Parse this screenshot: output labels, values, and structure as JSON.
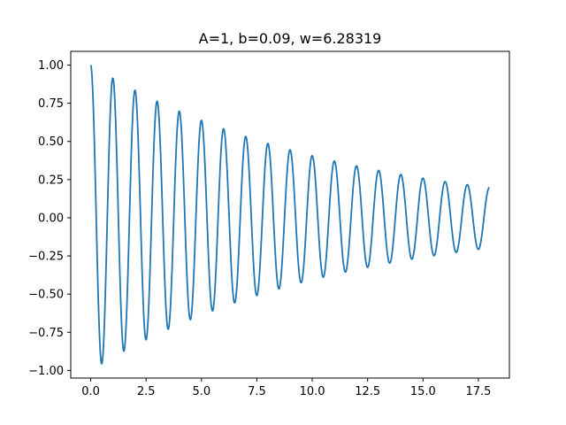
{
  "chart_data": {
    "type": "line",
    "title": "A=1, b=0.09, w=6.28319",
    "xlabel": "",
    "ylabel": "",
    "xlim": [
      -0.9,
      18.9
    ],
    "ylim": [
      -1.05,
      1.09
    ],
    "x_ticks": [
      0.0,
      2.5,
      5.0,
      7.5,
      10.0,
      12.5,
      15.0,
      17.5
    ],
    "x_tick_labels": [
      "0.0",
      "2.5",
      "5.0",
      "7.5",
      "10.0",
      "12.5",
      "15.0",
      "17.5"
    ],
    "y_ticks": [
      -1.0,
      -0.75,
      -0.5,
      -0.25,
      0.0,
      0.25,
      0.5,
      0.75,
      1.0
    ],
    "y_tick_labels": [
      "−1.00",
      "−0.75",
      "−0.50",
      "−0.25",
      "0.00",
      "0.25",
      "0.50",
      "0.75",
      "1.00"
    ],
    "grid": false,
    "legend": false,
    "series": [
      {
        "color": "#1f77b4",
        "function": "A*exp(-b*x)*cos(w*x)",
        "params": {
          "A": 1,
          "b": 0.09,
          "w": 6.28319
        },
        "x_range": [
          0,
          18
        ]
      }
    ]
  }
}
